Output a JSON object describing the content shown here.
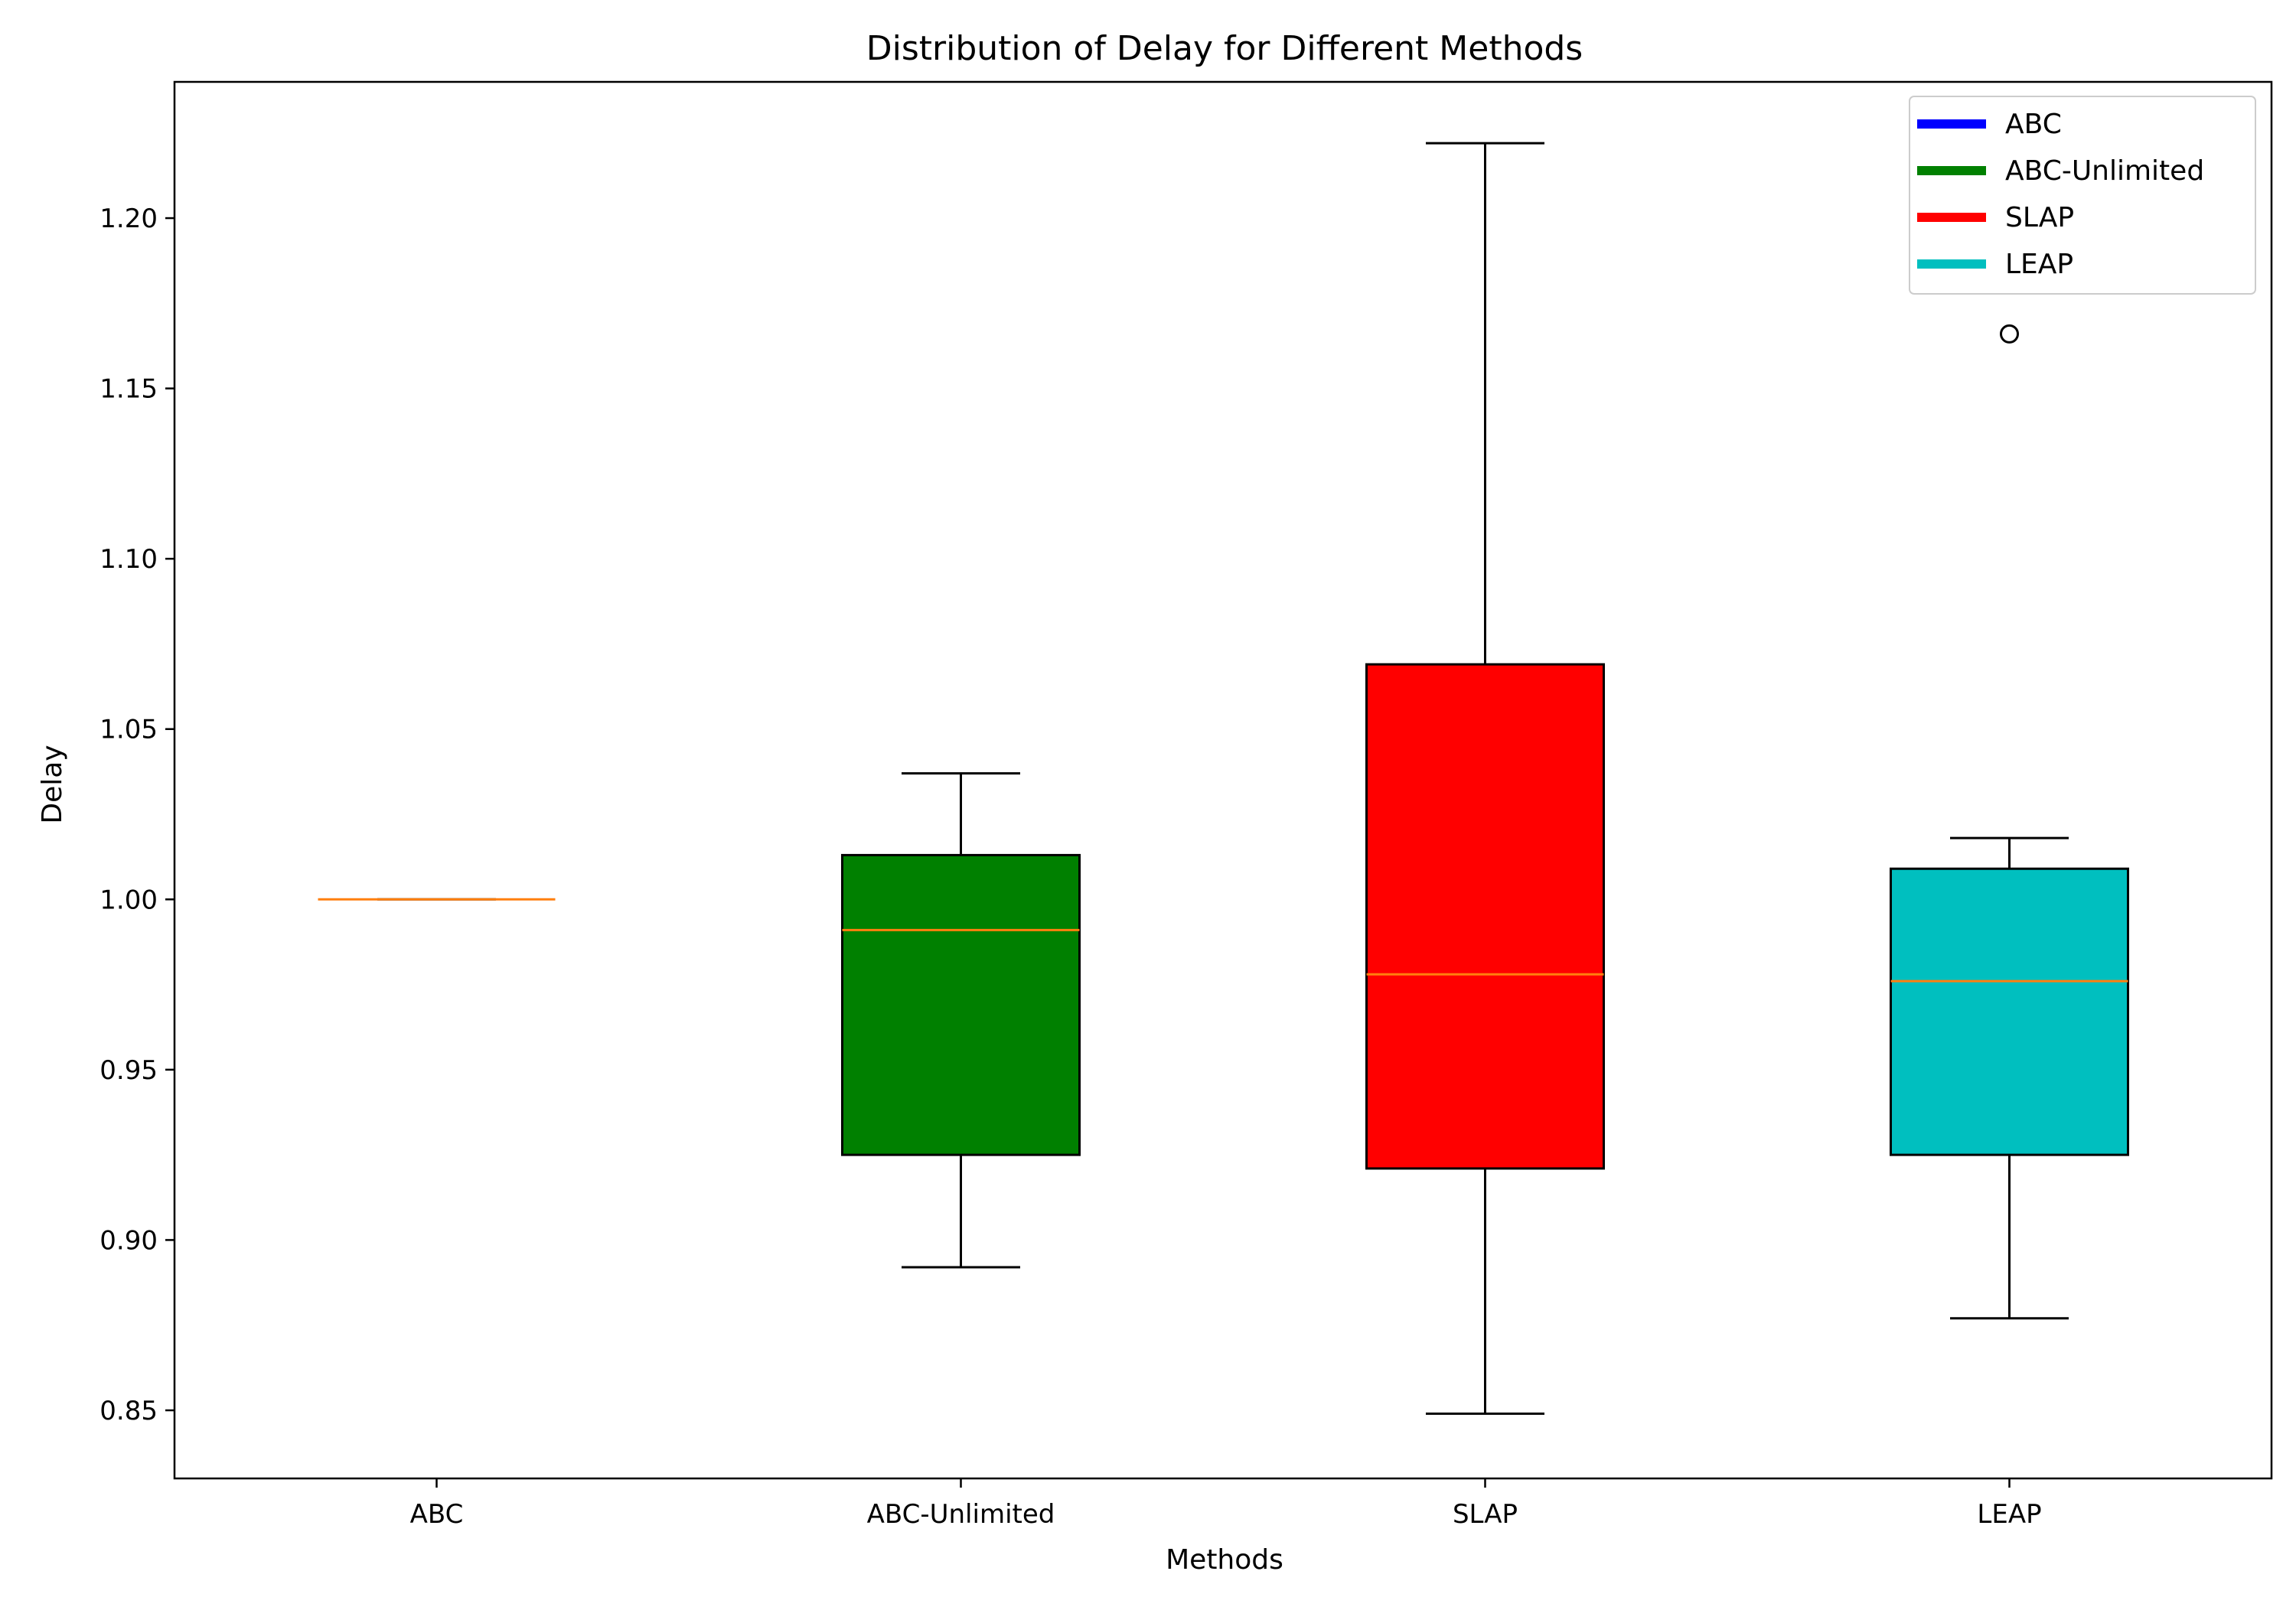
{
  "chart_data": {
    "type": "box",
    "title": "Distribution of Delay for Different Methods",
    "xlabel": "Methods",
    "ylabel": "Delay",
    "ylim": [
      0.83,
      1.24
    ],
    "yticks": [
      "0.85",
      "0.90",
      "0.95",
      "1.00",
      "1.05",
      "1.10",
      "1.15",
      "1.20"
    ],
    "grid": false,
    "legend_position": "top-right",
    "median_color": "#ff7f0e",
    "series": [
      {
        "name": "ABC",
        "color": "#0000ff",
        "whisker_low": 1.0,
        "q1": 1.0,
        "median": 1.0,
        "q3": 1.0,
        "whisker_high": 1.0,
        "outliers": []
      },
      {
        "name": "ABC-Unlimited",
        "color": "#008000",
        "whisker_low": 0.892,
        "q1": 0.925,
        "median": 0.991,
        "q3": 1.013,
        "whisker_high": 1.037,
        "outliers": []
      },
      {
        "name": "SLAP",
        "color": "#ff0000",
        "whisker_low": 0.849,
        "q1": 0.921,
        "median": 0.978,
        "q3": 1.069,
        "whisker_high": 1.222,
        "outliers": []
      },
      {
        "name": "LEAP",
        "color": "#00bfbf",
        "whisker_low": 0.877,
        "q1": 0.925,
        "median": 0.976,
        "q3": 1.009,
        "whisker_high": 1.018,
        "outliers": [
          1.166
        ]
      }
    ]
  }
}
